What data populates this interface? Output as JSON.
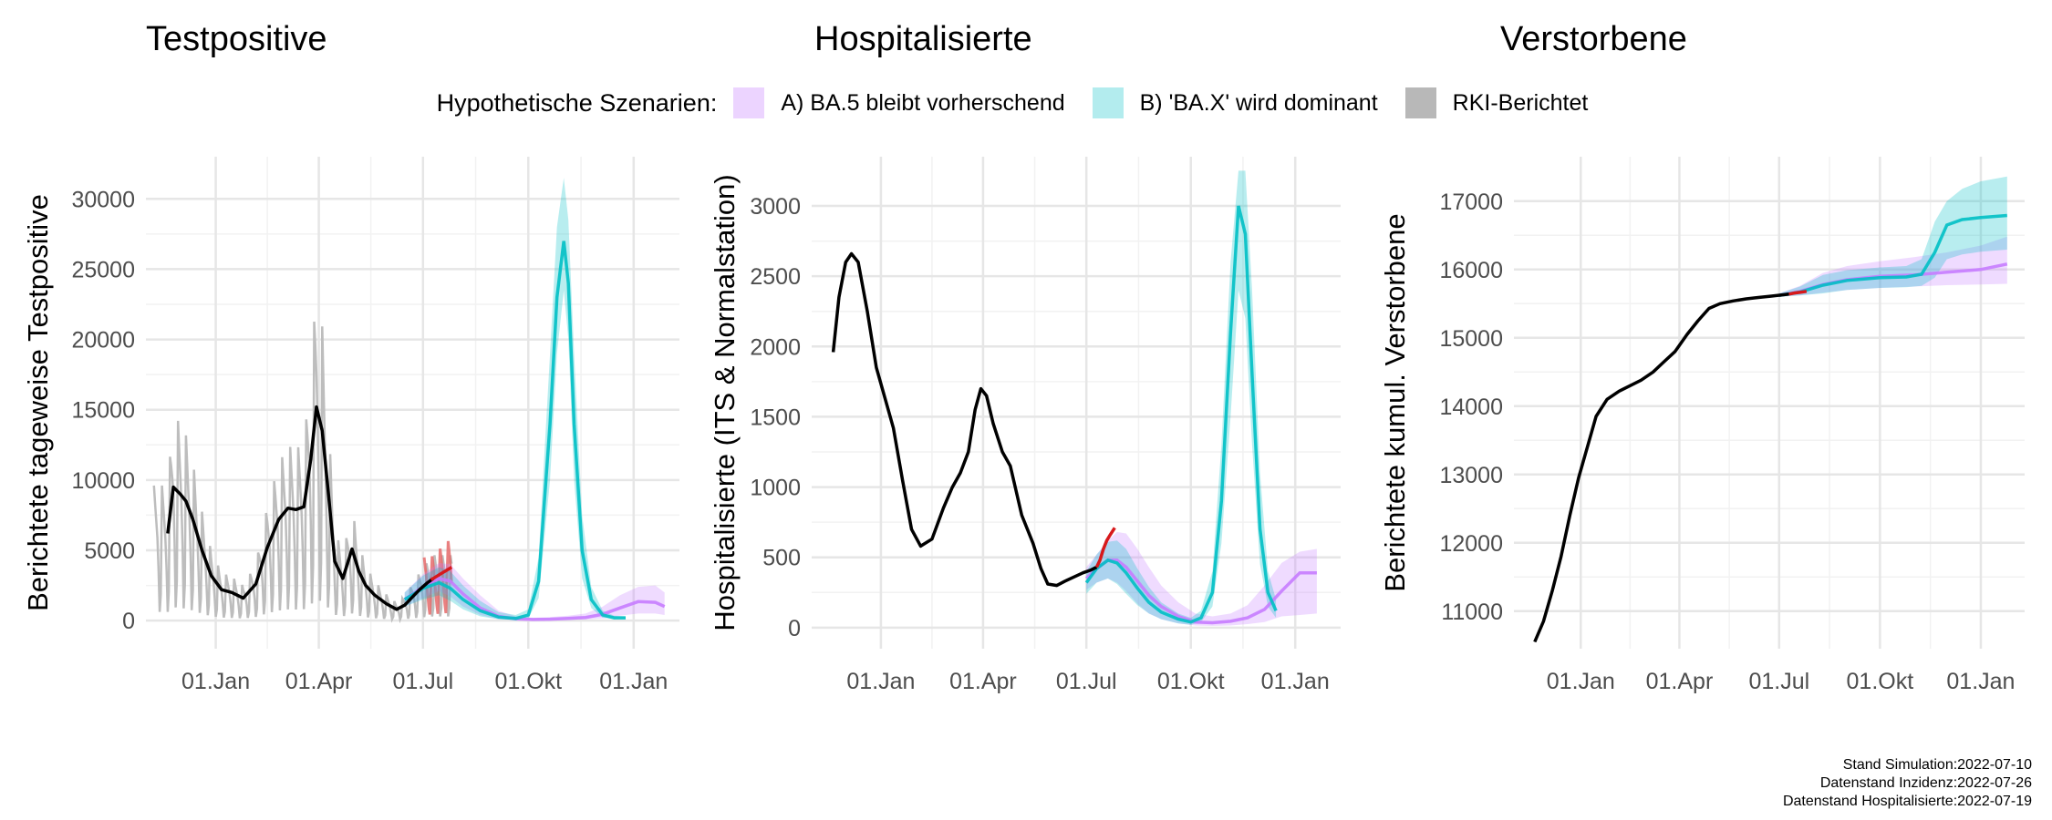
{
  "panels": [
    {
      "title": "Testpositive"
    },
    {
      "title": "Hospitalisierte"
    },
    {
      "title": "Verstorbene"
    }
  ],
  "legend": {
    "title": "Hypothetische Szenarien:",
    "items": [
      {
        "label": "A) BA.5 bleibt vorherschend",
        "color": "#c77cff"
      },
      {
        "label": "B) 'BA.X' wird dominant",
        "color": "#00bfc4"
      },
      {
        "label": "RKI-Berichtet",
        "color": "#7f7f7f"
      }
    ]
  },
  "footer": {
    "line1": "Stand Simulation:2022-07-10",
    "line2": "Datenstand Inzidenz:2022-07-26",
    "line3": "Datenstand Hospitalisierte:2022-07-19"
  },
  "colors": {
    "scenario_a": "#c77cff",
    "scenario_b": "#00bfc4",
    "reported": "#000000",
    "reported_daily": "#bdbdbd",
    "recent": "#d7191c",
    "overlap": "#4f9fd1"
  },
  "chart_data": [
    {
      "type": "line",
      "title": "Testpositive",
      "ylabel": "Berichtete tageweise Testpositive",
      "xlabel": "",
      "x_ticks": [
        "01.Jan",
        "01.Apr",
        "01.Jul",
        "01.Okt",
        "01.Jan"
      ],
      "x_tick_dates": [
        "2022-01-01",
        "2022-04-01",
        "2022-07-01",
        "2022-10-01",
        "2023-01-01"
      ],
      "xlim": [
        "2021-11-01",
        "2023-02-10"
      ],
      "y_ticks": [
        0,
        5000,
        10000,
        15000,
        20000,
        25000,
        30000
      ],
      "ylim": [
        -2000,
        33000
      ],
      "grid": true,
      "series": [
        {
          "name": "RKI-Berichtet",
          "x": [
            "2021-11-20",
            "2021-11-25",
            "2021-12-01",
            "2021-12-06",
            "2021-12-12",
            "2021-12-20",
            "2021-12-28",
            "2022-01-06",
            "2022-01-15",
            "2022-01-25",
            "2022-02-05",
            "2022-02-15",
            "2022-02-25",
            "2022-03-05",
            "2022-03-12",
            "2022-03-19",
            "2022-03-25",
            "2022-03-30",
            "2022-04-04",
            "2022-04-10",
            "2022-04-15",
            "2022-04-22",
            "2022-04-30",
            "2022-05-06",
            "2022-05-12",
            "2022-05-20",
            "2022-05-30",
            "2022-06-08",
            "2022-06-15",
            "2022-06-22",
            "2022-06-28",
            "2022-07-05",
            "2022-07-10"
          ],
          "values": [
            6200,
            9500,
            9000,
            8500,
            7200,
            5000,
            3200,
            2200,
            2000,
            1600,
            2600,
            5200,
            7200,
            8000,
            7900,
            8100,
            11500,
            15200,
            13500,
            8500,
            4200,
            3000,
            5100,
            3500,
            2500,
            1800,
            1200,
            800,
            1100,
            1700,
            2200,
            2700,
            3000
          ]
        },
        {
          "name": "",
          "x": [
            "2022-07-08",
            "2022-07-12",
            "2022-07-16",
            "2022-07-20",
            "2022-07-24",
            "2022-07-26"
          ],
          "values": [
            2900,
            3100,
            3300,
            3500,
            3700,
            3800
          ]
        },
        {
          "name": "A) BA.5 bleibt vorherschend",
          "x": [
            "2022-06-15",
            "2022-07-01",
            "2022-07-15",
            "2022-07-25",
            "2022-08-05",
            "2022-08-20",
            "2022-09-05",
            "2022-09-20",
            "2022-10-05",
            "2022-10-20",
            "2022-11-05",
            "2022-11-20",
            "2022-12-05",
            "2022-12-20",
            "2023-01-05",
            "2023-01-20",
            "2023-01-28"
          ],
          "values": [
            1500,
            2400,
            3000,
            2800,
            1900,
            900,
            300,
            120,
            80,
            100,
            150,
            220,
            450,
            900,
            1350,
            1300,
            1000
          ],
          "lower": [
            1000,
            1600,
            2100,
            1700,
            1000,
            400,
            100,
            40,
            30,
            40,
            50,
            80,
            150,
            350,
            500,
            500,
            400
          ],
          "upper": [
            2000,
            3300,
            4100,
            4000,
            3000,
            1800,
            700,
            300,
            200,
            250,
            350,
            500,
            1000,
            1800,
            2400,
            2500,
            2000
          ]
        },
        {
          "name": "B) 'BA.X' wird dominant",
          "x": [
            "2022-06-15",
            "2022-07-01",
            "2022-07-15",
            "2022-07-25",
            "2022-08-05",
            "2022-08-20",
            "2022-09-05",
            "2022-09-20",
            "2022-10-01",
            "2022-10-10",
            "2022-10-20",
            "2022-10-26",
            "2022-11-01",
            "2022-11-05",
            "2022-11-10",
            "2022-11-17",
            "2022-11-25",
            "2022-12-05",
            "2022-12-15",
            "2022-12-25"
          ],
          "values": [
            1500,
            2300,
            2700,
            2300,
            1500,
            700,
            250,
            150,
            400,
            2800,
            14000,
            23000,
            27000,
            24000,
            14000,
            5000,
            1500,
            400,
            200,
            200
          ],
          "lower": [
            1000,
            1500,
            1800,
            1400,
            800,
            300,
            100,
            50,
            150,
            1600,
            10000,
            19000,
            23500,
            20000,
            10000,
            3000,
            900,
            200,
            100,
            100
          ],
          "upper": [
            2000,
            3200,
            3800,
            3500,
            2500,
            1400,
            600,
            400,
            800,
            4500,
            19000,
            28000,
            31500,
            28500,
            19000,
            7500,
            2400,
            700,
            350,
            300
          ]
        }
      ]
    },
    {
      "type": "line",
      "title": "Hospitalisierte",
      "ylabel": "Hospitalisierte (ITS & Normalstation)",
      "xlabel": "",
      "x_ticks": [
        "01.Jan",
        "01.Apr",
        "01.Jul",
        "01.Okt",
        "01.Jan"
      ],
      "x_tick_dates": [
        "2022-01-01",
        "2022-04-01",
        "2022-07-01",
        "2022-10-01",
        "2023-01-01"
      ],
      "xlim": [
        "2021-11-01",
        "2023-02-10"
      ],
      "y_ticks": [
        0,
        500,
        1000,
        1500,
        2000,
        2500,
        3000
      ],
      "ylim": [
        -150,
        3350
      ],
      "grid": true,
      "series": [
        {
          "name": "RKI-Berichtet",
          "x": [
            "2021-11-20",
            "2021-11-25",
            "2021-12-01",
            "2021-12-06",
            "2021-12-12",
            "2021-12-20",
            "2021-12-28",
            "2022-01-05",
            "2022-01-12",
            "2022-01-20",
            "2022-01-28",
            "2022-02-05",
            "2022-02-15",
            "2022-02-25",
            "2022-03-05",
            "2022-03-12",
            "2022-03-19",
            "2022-03-25",
            "2022-03-30",
            "2022-04-04",
            "2022-04-10",
            "2022-04-18",
            "2022-04-25",
            "2022-05-05",
            "2022-05-15",
            "2022-05-22",
            "2022-05-28",
            "2022-06-05",
            "2022-06-12",
            "2022-06-20",
            "2022-06-28",
            "2022-07-05",
            "2022-07-10"
          ],
          "values": [
            1960,
            2350,
            2600,
            2660,
            2600,
            2250,
            1850,
            1620,
            1420,
            1050,
            700,
            580,
            630,
            850,
            1000,
            1100,
            1250,
            1550,
            1700,
            1650,
            1450,
            1250,
            1150,
            800,
            600,
            420,
            310,
            300,
            330,
            360,
            390,
            410,
            430
          ]
        },
        {
          "name": "",
          "x": [
            "2022-07-10",
            "2022-07-13",
            "2022-07-16",
            "2022-07-19",
            "2022-07-22",
            "2022-07-26"
          ],
          "values": [
            430,
            480,
            560,
            620,
            660,
            710
          ]
        },
        {
          "name": "A) BA.5 bleibt vorherschend",
          "x": [
            "2022-07-01",
            "2022-07-10",
            "2022-07-20",
            "2022-07-28",
            "2022-08-05",
            "2022-08-15",
            "2022-08-25",
            "2022-09-05",
            "2022-09-20",
            "2022-10-05",
            "2022-10-20",
            "2022-11-05",
            "2022-11-20",
            "2022-12-05",
            "2022-12-20",
            "2023-01-05",
            "2023-01-20"
          ],
          "values": [
            350,
            420,
            480,
            480,
            430,
            330,
            230,
            150,
            80,
            40,
            35,
            45,
            70,
            130,
            260,
            390,
            390
          ],
          "lower": [
            270,
            320,
            350,
            320,
            260,
            170,
            100,
            60,
            30,
            15,
            12,
            15,
            25,
            40,
            80,
            90,
            100
          ],
          "upper": [
            430,
            520,
            620,
            680,
            670,
            560,
            430,
            300,
            180,
            100,
            80,
            100,
            160,
            300,
            460,
            540,
            560
          ]
        },
        {
          "name": "B) 'BA.X' wird dominant",
          "x": [
            "2022-07-01",
            "2022-07-10",
            "2022-07-20",
            "2022-07-28",
            "2022-08-05",
            "2022-08-15",
            "2022-08-25",
            "2022-09-05",
            "2022-09-20",
            "2022-10-01",
            "2022-10-10",
            "2022-10-20",
            "2022-10-28",
            "2022-11-05",
            "2022-11-12",
            "2022-11-18",
            "2022-11-24",
            "2022-12-01",
            "2022-12-08",
            "2022-12-15"
          ],
          "values": [
            320,
            420,
            480,
            460,
            390,
            280,
            180,
            110,
            60,
            40,
            70,
            250,
            900,
            2100,
            3000,
            2800,
            1800,
            700,
            250,
            120
          ],
          "lower": [
            240,
            320,
            350,
            310,
            240,
            160,
            100,
            60,
            30,
            20,
            40,
            150,
            600,
            1500,
            2400,
            2200,
            1300,
            450,
            150,
            70
          ],
          "upper": [
            400,
            520,
            610,
            620,
            560,
            420,
            290,
            180,
            100,
            70,
            120,
            400,
            1300,
            2600,
            3250,
            3250,
            2400,
            1100,
            400,
            200
          ]
        }
      ]
    },
    {
      "type": "line",
      "title": "Verstorbene",
      "ylabel": "Berichtete kumul. Verstorbene",
      "xlabel": "",
      "x_ticks": [
        "01.Jan",
        "01.Apr",
        "01.Jul",
        "01.Okt",
        "01.Jan"
      ],
      "x_tick_dates": [
        "2022-01-01",
        "2022-04-01",
        "2022-07-01",
        "2022-10-01",
        "2023-01-01"
      ],
      "xlim": [
        "2021-11-01",
        "2023-02-10"
      ],
      "y_ticks": [
        11000,
        12000,
        13000,
        14000,
        15000,
        16000,
        17000
      ],
      "ylim": [
        10450,
        17650
      ],
      "grid": true,
      "series": [
        {
          "name": "RKI-Berichtet",
          "x": [
            "2021-11-20",
            "2021-11-28",
            "2021-12-06",
            "2021-12-14",
            "2021-12-22",
            "2021-12-30",
            "2022-01-07",
            "2022-01-15",
            "2022-01-25",
            "2022-02-05",
            "2022-02-15",
            "2022-02-25",
            "2022-03-08",
            "2022-03-18",
            "2022-03-28",
            "2022-04-08",
            "2022-04-18",
            "2022-04-28",
            "2022-05-08",
            "2022-05-20",
            "2022-06-01",
            "2022-06-12",
            "2022-06-24",
            "2022-07-05",
            "2022-07-10"
          ],
          "values": [
            10550,
            10850,
            11300,
            11800,
            12400,
            12950,
            13400,
            13850,
            14100,
            14220,
            14300,
            14380,
            14500,
            14650,
            14800,
            15050,
            15250,
            15430,
            15500,
            15540,
            15570,
            15590,
            15610,
            15630,
            15640
          ]
        },
        {
          "name": "",
          "x": [
            "2022-07-10",
            "2022-07-15",
            "2022-07-20",
            "2022-07-26"
          ],
          "values": [
            15640,
            15655,
            15665,
            15680
          ]
        },
        {
          "name": "A) BA.5 bleibt vorherschend",
          "x": [
            "2022-07-01",
            "2022-07-20",
            "2022-08-10",
            "2022-09-01",
            "2022-10-01",
            "2022-11-01",
            "2022-12-01",
            "2023-01-01",
            "2023-01-25"
          ],
          "values": [
            15620,
            15680,
            15780,
            15850,
            15900,
            15920,
            15960,
            16000,
            16080
          ],
          "lower": [
            15600,
            15620,
            15660,
            15700,
            15730,
            15750,
            15770,
            15780,
            15790
          ],
          "upper": [
            15650,
            15760,
            15950,
            16050,
            16120,
            16180,
            16250,
            16350,
            16480
          ]
        },
        {
          "name": "B) 'BA.X' wird dominant",
          "x": [
            "2022-07-01",
            "2022-07-20",
            "2022-08-10",
            "2022-09-01",
            "2022-10-01",
            "2022-10-25",
            "2022-11-08",
            "2022-11-20",
            "2022-12-01",
            "2022-12-15",
            "2023-01-01",
            "2023-01-25"
          ],
          "values": [
            15620,
            15670,
            15770,
            15840,
            15880,
            15890,
            15930,
            16250,
            16650,
            16730,
            16760,
            16790
          ],
          "lower": [
            15600,
            15620,
            15650,
            15700,
            15730,
            15740,
            15760,
            15880,
            16150,
            16220,
            16260,
            16290
          ],
          "upper": [
            15650,
            15750,
            15920,
            15990,
            16030,
            16050,
            16150,
            16700,
            17000,
            17180,
            17290,
            17360
          ]
        }
      ]
    }
  ]
}
